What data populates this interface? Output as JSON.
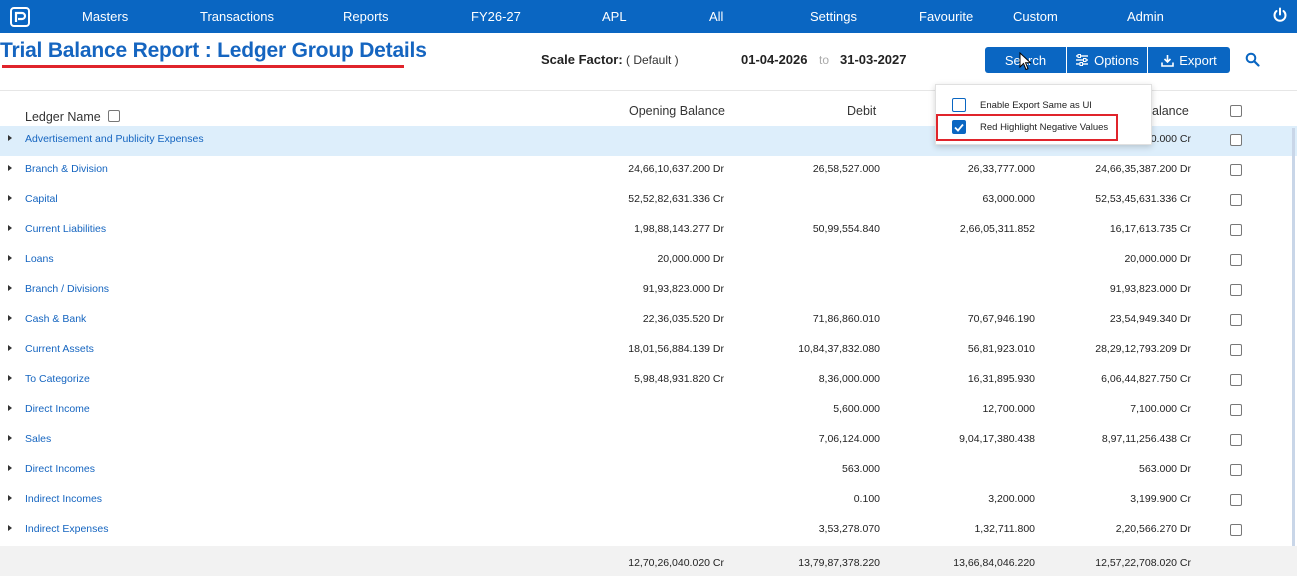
{
  "nav": {
    "items": [
      "Masters",
      "Transactions",
      "Reports",
      "FY26-27",
      "APL",
      "All",
      "Settings",
      "Favourite",
      "Custom",
      "Admin"
    ]
  },
  "header": {
    "title": "Trial Balance Report : Ledger Group Details",
    "scale_label": "Scale Factor:",
    "scale_value": "( Default )",
    "date_from": "01-04-2026",
    "date_to_label": "to",
    "date_end": "31-03-2027",
    "search_label": "Search",
    "options_label": "Options",
    "export_label": "Export"
  },
  "table": {
    "columns": {
      "ledger_name": "Ledger Name",
      "opening": "Opening Balance",
      "debit": "Debit",
      "closing_partial": "alance"
    },
    "rows": [
      {
        "name": "Advertisement and Publicity Expenses",
        "opening": "",
        "debit": "",
        "credit": "",
        "closing": "00.000 Cr"
      },
      {
        "name": "Branch & Division",
        "opening": "24,66,10,637.200 Dr",
        "debit": "26,58,527.000",
        "credit": "26,33,777.000",
        "closing": "24,66,35,387.200 Dr"
      },
      {
        "name": "Capital",
        "opening": "52,52,82,631.336 Cr",
        "debit": "",
        "credit": "63,000.000",
        "closing": "52,53,45,631.336 Cr"
      },
      {
        "name": "Current Liabilities",
        "opening": "1,98,88,143.277 Dr",
        "debit": "50,99,554.840",
        "credit": "2,66,05,311.852",
        "closing": "16,17,613.735 Cr"
      },
      {
        "name": "Loans",
        "opening": "20,000.000 Dr",
        "debit": "",
        "credit": "",
        "closing": "20,000.000 Dr"
      },
      {
        "name": "Branch / Divisions",
        "opening": "91,93,823.000 Dr",
        "debit": "",
        "credit": "",
        "closing": "91,93,823.000 Dr"
      },
      {
        "name": "Cash & Bank",
        "opening": "22,36,035.520 Dr",
        "debit": "71,86,860.010",
        "credit": "70,67,946.190",
        "closing": "23,54,949.340 Dr"
      },
      {
        "name": "Current Assets",
        "opening": "18,01,56,884.139 Dr",
        "debit": "10,84,37,832.080",
        "credit": "56,81,923.010",
        "closing": "28,29,12,793.209 Dr"
      },
      {
        "name": "To Categorize",
        "opening": "5,98,48,931.820 Cr",
        "debit": "8,36,000.000",
        "credit": "16,31,895.930",
        "closing": "6,06,44,827.750 Cr"
      },
      {
        "name": "Direct Income",
        "opening": "",
        "debit": "5,600.000",
        "credit": "12,700.000",
        "closing": "7,100.000 Cr"
      },
      {
        "name": "Sales",
        "opening": "",
        "debit": "7,06,124.000",
        "credit": "9,04,17,380.438",
        "closing": "8,97,11,256.438 Cr"
      },
      {
        "name": "Direct Incomes",
        "opening": "",
        "debit": "563.000",
        "credit": "",
        "closing": "563.000 Dr"
      },
      {
        "name": "Indirect Incomes",
        "opening": "",
        "debit": "0.100",
        "credit": "3,200.000",
        "closing": "3,199.900 Cr"
      },
      {
        "name": "Indirect Expenses",
        "opening": "",
        "debit": "3,53,278.070",
        "credit": "1,32,711.800",
        "closing": "2,20,566.270 Dr"
      }
    ],
    "totals": {
      "opening": "12,70,26,040.020 Cr",
      "debit": "13,79,87,378.220",
      "credit": "13,66,84,046.220",
      "closing": "12,57,22,708.020 Cr"
    }
  },
  "options_menu": {
    "items": [
      {
        "label": "Enable Export Same as UI",
        "checked": false
      },
      {
        "label": "Red Highlight Negative Values",
        "checked": true
      }
    ]
  },
  "colors": {
    "brand": "#0a66c2",
    "link": "#1565c0",
    "highlight_row": "#ddeefb",
    "annotation_red": "#e0242b"
  }
}
